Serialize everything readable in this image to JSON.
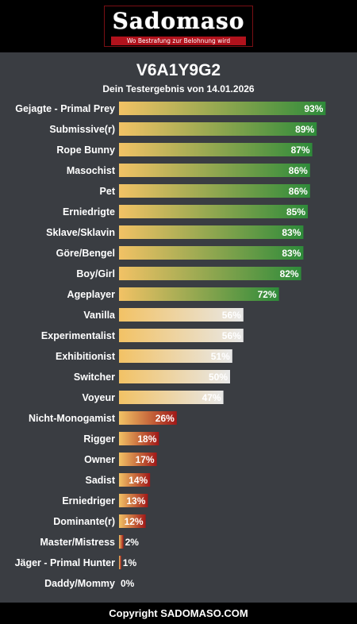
{
  "header": {
    "logo_text": "Sadomaso",
    "logo_tagline": "Wo Bestrafung zur Belohnung wird"
  },
  "result": {
    "code": "V6A1Y9G2",
    "subtitle": "Dein Testergebnis von 14.01.2026"
  },
  "footer": {
    "copyright": "Copyright SADOMASO.COM"
  },
  "colors": {
    "start": "#f2c265",
    "green": "#2e8b3a",
    "light": "#e8e8e8",
    "red": "#a01818",
    "background": "#3a3d42"
  },
  "chart_data": {
    "type": "bar",
    "orientation": "horizontal",
    "xlim": [
      0,
      100
    ],
    "categories": [
      "Gejagte - Primal Prey",
      "Submissive(r)",
      "Rope Bunny",
      "Masochist",
      "Pet",
      "Erniedrigte",
      "Sklave/Sklavin",
      "Göre/Bengel",
      "Boy/Girl",
      "Ageplayer",
      "Vanilla",
      "Experimentalist",
      "Exhibitionist",
      "Switcher",
      "Voyeur",
      "Nicht-Monogamist",
      "Rigger",
      "Owner",
      "Sadist",
      "Erniedriger",
      "Dominante(r)",
      "Master/Mistress",
      "Jäger - Primal Hunter",
      "Daddy/Mommy"
    ],
    "values": [
      93,
      89,
      87,
      86,
      86,
      85,
      83,
      83,
      82,
      72,
      56,
      56,
      51,
      50,
      47,
      26,
      18,
      17,
      14,
      13,
      12,
      2,
      1,
      0
    ],
    "value_labels": [
      "93%",
      "89%",
      "87%",
      "86%",
      "86%",
      "85%",
      "83%",
      "83%",
      "82%",
      "72%",
      "56%",
      "56%",
      "51%",
      "50%",
      "47%",
      "26%",
      "18%",
      "17%",
      "14%",
      "13%",
      "12%",
      "2%",
      "1%",
      "0%"
    ]
  }
}
